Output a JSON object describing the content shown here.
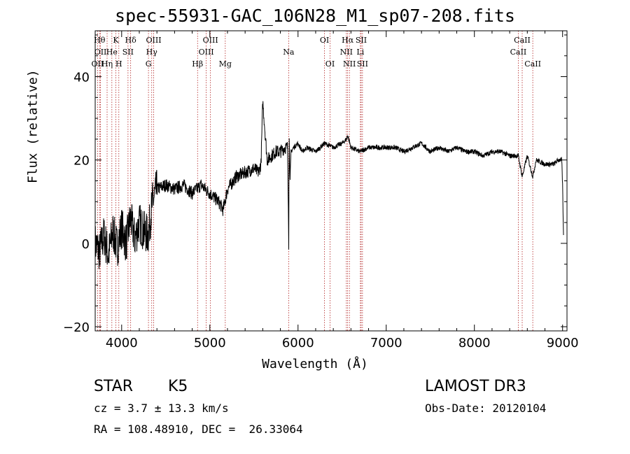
{
  "chart_data": {
    "type": "line",
    "title": "spec-55931-GAC_106N28_M1_sp07-208.fits",
    "xlabel": "Wavelength (Å)",
    "ylabel": "Flux (relative)",
    "xlim": [
      3700,
      9050
    ],
    "ylim": [
      -21,
      51
    ],
    "x_ticks": [
      4000,
      5000,
      6000,
      7000,
      8000,
      9000
    ],
    "y_ticks": [
      -20,
      0,
      20,
      40
    ],
    "series": [
      {
        "name": "spectrum",
        "x": [
          3700,
          3750,
          3800,
          3850,
          3900,
          3950,
          4000,
          4050,
          4100,
          4150,
          4200,
          4250,
          4300,
          4350,
          4400,
          4500,
          4600,
          4700,
          4800,
          4900,
          5000,
          5100,
          5150,
          5200,
          5300,
          5400,
          5500,
          5550,
          5580,
          5600,
          5650,
          5700,
          5750,
          5800,
          5850,
          5880,
          5890,
          5895,
          5900,
          5910,
          5920,
          5950,
          6000,
          6050,
          6100,
          6200,
          6300,
          6400,
          6500,
          6550,
          6563,
          6600,
          6700,
          6800,
          6900,
          7000,
          7100,
          7200,
          7300,
          7400,
          7500,
          7600,
          7700,
          7800,
          7900,
          8000,
          8100,
          8200,
          8300,
          8400,
          8498,
          8542,
          8600,
          8662,
          8700,
          8800,
          8900,
          8950,
          8990,
          9000,
          9010
        ],
        "y": [
          0,
          -2,
          2,
          -3,
          3,
          -1,
          4,
          0,
          6,
          1,
          5,
          3,
          2,
          10,
          13,
          14,
          13,
          14,
          12,
          14,
          12,
          10,
          8,
          13,
          16,
          17,
          18,
          17,
          19,
          34,
          20,
          21,
          22,
          22,
          23,
          23,
          10,
          0,
          25,
          15,
          22,
          23,
          24,
          22,
          23,
          22,
          24,
          23,
          24,
          25,
          26,
          23,
          22,
          23,
          23,
          23,
          23,
          22,
          23,
          24,
          22,
          23,
          22,
          23,
          22,
          22,
          21,
          22,
          22,
          21,
          21,
          16,
          21,
          16,
          20,
          19,
          19,
          20,
          20,
          14,
          2
        ]
      }
    ],
    "lines": [
      {
        "label": "OII",
        "wavelength": 3727,
        "row": 3
      },
      {
        "label": "Hθ",
        "wavelength": 3750,
        "row": 1
      },
      {
        "label": "OII",
        "wavelength": 3760,
        "row": 2
      },
      {
        "label": "Hη",
        "wavelength": 3835,
        "row": 3
      },
      {
        "label": "He",
        "wavelength": 3889,
        "row": 2
      },
      {
        "label": "K",
        "wavelength": 3934,
        "row": 1
      },
      {
        "label": "H",
        "wavelength": 3968,
        "row": 3
      },
      {
        "label": "SII",
        "wavelength": 4072,
        "row": 2
      },
      {
        "label": "Hδ",
        "wavelength": 4102,
        "row": 1
      },
      {
        "label": "G",
        "wavelength": 4304,
        "row": 3
      },
      {
        "label": "Hγ",
        "wavelength": 4341,
        "row": 2
      },
      {
        "label": "OIII",
        "wavelength": 4363,
        "row": 1
      },
      {
        "label": "Hβ",
        "wavelength": 4861,
        "row": 3
      },
      {
        "label": "OIII",
        "wavelength": 4959,
        "row": 2
      },
      {
        "label": "OIII",
        "wavelength": 5007,
        "row": 1
      },
      {
        "label": "Mg",
        "wavelength": 5175,
        "row": 3
      },
      {
        "label": "Na",
        "wavelength": 5894,
        "row": 2
      },
      {
        "label": "OI",
        "wavelength": 6300,
        "row": 1
      },
      {
        "label": "OI",
        "wavelength": 6363,
        "row": 3
      },
      {
        "label": "NII",
        "wavelength": 6548,
        "row": 2
      },
      {
        "label": "Hα",
        "wavelength": 6563,
        "row": 1
      },
      {
        "label": "NII",
        "wavelength": 6583,
        "row": 3
      },
      {
        "label": "Li",
        "wavelength": 6707,
        "row": 2
      },
      {
        "label": "SII",
        "wavelength": 6716,
        "row": 1
      },
      {
        "label": "SII",
        "wavelength": 6731,
        "row": 3
      },
      {
        "label": "CaII",
        "wavelength": 8498,
        "row": 2
      },
      {
        "label": "CaII",
        "wavelength": 8542,
        "row": 1
      },
      {
        "label": "CaII",
        "wavelength": 8662,
        "row": 3
      }
    ]
  },
  "info": {
    "class": "STAR",
    "subclass": "K5",
    "survey": "LAMOST DR3",
    "cz": "cz = 3.7 ± 13.3 km/s",
    "obs_date": "Obs-Date: 20120104",
    "coords": "RA = 108.48910, DEC =  26.33064"
  },
  "colors": {
    "spectrum": "#000000",
    "line_markers": "#b22222",
    "axes": "#000000"
  }
}
